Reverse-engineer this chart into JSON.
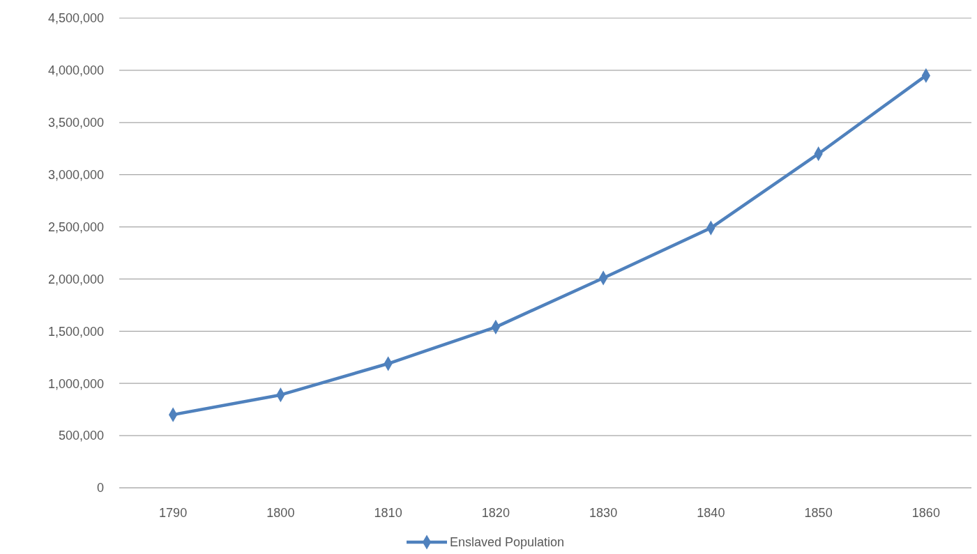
{
  "chart_data": {
    "type": "line",
    "categories": [
      "1790",
      "1800",
      "1810",
      "1820",
      "1830",
      "1840",
      "1850",
      "1860"
    ],
    "series": [
      {
        "name": "Enslaved Population",
        "color": "#4f81bd",
        "values": [
          700000,
          890000,
          1190000,
          1540000,
          2010000,
          2490000,
          3200000,
          3950000
        ]
      }
    ],
    "ylim": [
      0,
      4500000
    ],
    "yticks": [
      {
        "value": 0,
        "label": "0"
      },
      {
        "value": 500000,
        "label": "500,000"
      },
      {
        "value": 1000000,
        "label": "1,000,000"
      },
      {
        "value": 1500000,
        "label": "1,500,000"
      },
      {
        "value": 2000000,
        "label": "2,000,000"
      },
      {
        "value": 2500000,
        "label": "2,500,000"
      },
      {
        "value": 3000000,
        "label": "3,000,000"
      },
      {
        "value": 3500000,
        "label": "3,500,000"
      },
      {
        "value": 4000000,
        "label": "4,000,000"
      },
      {
        "value": 4500000,
        "label": "4,500,000"
      }
    ],
    "grid": "y",
    "legend": "bottom",
    "marker": "diamond",
    "line_style": "solid"
  }
}
